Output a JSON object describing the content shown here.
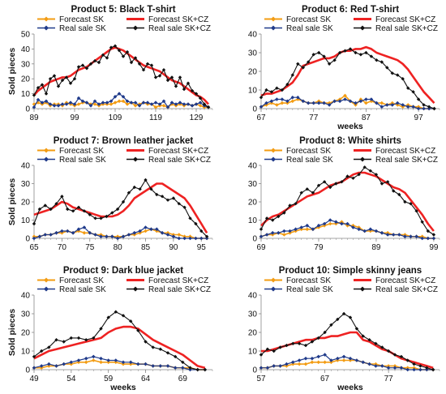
{
  "legend": {
    "forecast_sk": "Forecast SK",
    "real_sk": "Real sale SK",
    "forecast_skcz": "Forecast SK+CZ",
    "real_skcz": "Real sale SK+CZ"
  },
  "colors": {
    "forecast_sk": "#f39c12",
    "real_sk": "#1f3a8a",
    "forecast_skcz": "#ee2222",
    "real_skcz": "#111111"
  },
  "chart_data": [
    {
      "type": "line",
      "title": "Product 5: Black T-shirt",
      "xlabel": "",
      "ylabel": "Sold pieces",
      "xlim": [
        89,
        133
      ],
      "ylim": [
        0,
        50
      ],
      "xticks": [
        89,
        99,
        109,
        119,
        129
      ],
      "yticks": [
        0,
        10,
        20,
        30,
        40,
        50
      ],
      "x": [
        89,
        90,
        91,
        92,
        93,
        94,
        95,
        96,
        97,
        98,
        99,
        100,
        101,
        102,
        103,
        104,
        105,
        106,
        107,
        108,
        109,
        110,
        111,
        112,
        113,
        114,
        115,
        116,
        117,
        118,
        119,
        120,
        121,
        122,
        123,
        124,
        125,
        126,
        127,
        128,
        129,
        130,
        131,
        132
      ],
      "series": [
        {
          "name": "Forecast SK",
          "values": [
            3,
            4,
            3,
            4,
            2,
            3,
            3,
            2,
            4,
            3,
            2,
            3,
            4,
            4,
            3,
            3,
            2,
            3,
            3,
            3,
            4,
            5,
            5,
            3,
            4,
            2,
            3,
            4,
            3,
            3,
            1,
            2,
            2,
            1,
            3,
            2,
            3,
            2,
            3,
            2,
            3,
            2,
            1,
            1
          ]
        },
        {
          "name": "Real sale SK",
          "values": [
            1,
            6,
            4,
            5,
            3,
            2,
            2,
            3,
            3,
            4,
            3,
            7,
            5,
            4,
            2,
            5,
            3,
            4,
            4,
            5,
            8,
            10,
            8,
            5,
            4,
            4,
            2,
            4,
            4,
            3,
            4,
            3,
            5,
            1,
            4,
            3,
            4,
            3,
            3,
            2,
            3,
            4,
            2,
            1
          ]
        },
        {
          "name": "Forecast SK+CZ",
          "values": [
            9,
            12,
            14,
            16,
            18,
            19,
            20,
            21,
            21,
            22,
            24,
            26,
            27,
            28,
            30,
            32,
            34,
            36,
            38,
            40,
            41,
            40,
            39,
            37,
            35,
            33,
            31,
            29,
            28,
            27,
            26,
            25,
            23,
            21,
            19,
            18,
            17,
            15,
            13,
            11,
            9,
            8,
            6,
            3
          ]
        },
        {
          "name": "Real sale SK+CZ",
          "values": [
            9,
            14,
            16,
            10,
            20,
            22,
            15,
            19,
            21,
            17,
            20,
            28,
            29,
            27,
            30,
            32,
            31,
            36,
            34,
            41,
            42,
            39,
            35,
            38,
            31,
            34,
            30,
            26,
            30,
            29,
            21,
            22,
            26,
            19,
            21,
            15,
            21,
            13,
            17,
            12,
            10,
            7,
            3,
            1
          ]
        }
      ]
    },
    {
      "type": "line",
      "title": "Product 6: Red T-shirt",
      "xlabel": "weeks",
      "ylabel": "",
      "xlim": [
        67,
        101
      ],
      "ylim": [
        0,
        40
      ],
      "xticks": [
        67,
        77,
        87,
        97
      ],
      "yticks": [
        0,
        10,
        20,
        30,
        40
      ],
      "x": [
        67,
        68,
        69,
        70,
        71,
        72,
        73,
        74,
        75,
        76,
        77,
        78,
        79,
        80,
        81,
        82,
        83,
        84,
        85,
        86,
        87,
        88,
        89,
        90,
        91,
        92,
        93,
        94,
        95,
        96,
        97,
        98,
        99,
        100
      ],
      "series": [
        {
          "name": "Forecast SK",
          "values": [
            1,
            2,
            3,
            2,
            3,
            3,
            4,
            5,
            4,
            3,
            3,
            4,
            3,
            3,
            4,
            5,
            7,
            4,
            2,
            5,
            3,
            4,
            3,
            3,
            2,
            3,
            2,
            1,
            2,
            1,
            1,
            0,
            0,
            0
          ]
        },
        {
          "name": "Real sale SK",
          "values": [
            1,
            3,
            4,
            5,
            5,
            4,
            6,
            6,
            4,
            3,
            3,
            3,
            3,
            2,
            4,
            4,
            5,
            4,
            3,
            4,
            5,
            5,
            3,
            1,
            2,
            2,
            3,
            2,
            1,
            1,
            0,
            0,
            0,
            0
          ]
        },
        {
          "name": "Forecast SK+CZ",
          "values": [
            7,
            8,
            8,
            9,
            10,
            12,
            14,
            18,
            23,
            24,
            25,
            26,
            27,
            27,
            28,
            30,
            31,
            31,
            32,
            32,
            33,
            32,
            30,
            29,
            28,
            27,
            26,
            24,
            21,
            17,
            13,
            9,
            6,
            3
          ]
        },
        {
          "name": "Real sale SK+CZ",
          "values": [
            6,
            10,
            9,
            11,
            10,
            13,
            18,
            24,
            22,
            25,
            29,
            30,
            28,
            24,
            26,
            30,
            31,
            32,
            30,
            29,
            30,
            28,
            26,
            25,
            22,
            19,
            18,
            16,
            11,
            9,
            5,
            2,
            1,
            0
          ]
        }
      ]
    },
    {
      "type": "line",
      "title": "Product 7: Brown leather jacket",
      "xlabel": "",
      "ylabel": "Sold pieces",
      "xlim": [
        65,
        97
      ],
      "ylim": [
        0,
        40
      ],
      "xticks": [
        65,
        70,
        75,
        80,
        85,
        90,
        95
      ],
      "yticks": [
        0,
        10,
        20,
        30,
        40
      ],
      "x": [
        65,
        66,
        67,
        68,
        69,
        70,
        71,
        72,
        73,
        74,
        75,
        76,
        77,
        78,
        79,
        80,
        81,
        82,
        83,
        84,
        85,
        86,
        87,
        88,
        89,
        90,
        91,
        92,
        93,
        94,
        95,
        96
      ],
      "series": [
        {
          "name": "Forecast SK",
          "values": [
            1,
            1,
            2,
            2,
            3,
            3,
            4,
            3,
            4,
            3,
            3,
            2,
            2,
            1,
            1,
            1,
            1,
            2,
            2,
            3,
            4,
            5,
            4,
            3,
            3,
            2,
            2,
            1,
            1,
            0,
            0,
            0
          ]
        },
        {
          "name": "Real sale SK",
          "values": [
            0,
            1,
            2,
            2,
            3,
            4,
            4,
            3,
            5,
            6,
            3,
            2,
            1,
            1,
            1,
            0,
            1,
            2,
            3,
            4,
            6,
            5,
            5,
            3,
            2,
            1,
            0,
            0,
            0,
            0,
            0,
            0
          ]
        },
        {
          "name": "Forecast SK+CZ",
          "values": [
            13,
            14,
            15,
            16,
            18,
            20,
            19,
            17,
            16,
            15,
            14,
            13,
            12,
            12,
            12,
            13,
            15,
            18,
            22,
            24,
            26,
            28,
            30,
            30,
            28,
            26,
            24,
            22,
            18,
            13,
            8,
            3
          ]
        },
        {
          "name": "Real sale SK+CZ",
          "values": [
            8,
            16,
            18,
            16,
            19,
            23,
            16,
            15,
            17,
            15,
            13,
            11,
            11,
            12,
            14,
            16,
            20,
            25,
            28,
            27,
            32,
            27,
            24,
            23,
            21,
            22,
            19,
            17,
            11,
            8,
            4,
            1
          ]
        }
      ]
    },
    {
      "type": "line",
      "title": "Product 8: White shirts",
      "xlabel": "",
      "ylabel": "",
      "xlim": [
        69,
        100
      ],
      "ylim": [
        0,
        40
      ],
      "xticks": [
        69,
        79,
        89,
        99
      ],
      "yticks": [
        0,
        10,
        20,
        30,
        40
      ],
      "x": [
        69,
        70,
        71,
        72,
        73,
        74,
        75,
        76,
        77,
        78,
        79,
        80,
        81,
        82,
        83,
        84,
        85,
        86,
        87,
        88,
        89,
        90,
        91,
        92,
        93,
        94,
        95,
        96,
        97,
        98,
        99
      ],
      "series": [
        {
          "name": "Forecast SK",
          "values": [
            1,
            2,
            2,
            3,
            2,
            3,
            4,
            5,
            5,
            5,
            6,
            7,
            8,
            8,
            9,
            7,
            7,
            6,
            4,
            4,
            4,
            3,
            3,
            2,
            2,
            2,
            1,
            1,
            1,
            0,
            0
          ]
        },
        {
          "name": "Real sale SK",
          "values": [
            1,
            2,
            3,
            3,
            4,
            4,
            5,
            6,
            7,
            5,
            7,
            8,
            10,
            9,
            8,
            8,
            6,
            5,
            4,
            5,
            4,
            3,
            2,
            2,
            2,
            1,
            1,
            1,
            0,
            0,
            0
          ]
        },
        {
          "name": "Forecast SK+CZ",
          "values": [
            7,
            10,
            12,
            13,
            15,
            17,
            19,
            21,
            23,
            24,
            25,
            27,
            29,
            30,
            31,
            33,
            35,
            36,
            36,
            35,
            34,
            32,
            30,
            28,
            27,
            25,
            21,
            17,
            13,
            8,
            4
          ]
        },
        {
          "name": "Real sale SK+CZ",
          "values": [
            5,
            11,
            10,
            12,
            14,
            18,
            19,
            25,
            27,
            25,
            29,
            31,
            28,
            30,
            31,
            34,
            33,
            35,
            39,
            37,
            35,
            30,
            31,
            26,
            24,
            20,
            19,
            15,
            9,
            4,
            2
          ]
        }
      ]
    },
    {
      "type": "line",
      "title": "Product 9: Dark blue jacket",
      "xlabel": "weeks",
      "ylabel": "Sold pieces",
      "xlim": [
        49,
        73
      ],
      "ylim": [
        0,
        40
      ],
      "xticks": [
        49,
        54,
        59,
        64,
        69
      ],
      "yticks": [
        0,
        10,
        20,
        30,
        40
      ],
      "x": [
        49,
        50,
        51,
        52,
        53,
        54,
        55,
        56,
        57,
        58,
        59,
        60,
        61,
        62,
        63,
        64,
        65,
        66,
        67,
        68,
        69,
        70,
        71,
        72
      ],
      "series": [
        {
          "name": "Forecast SK",
          "values": [
            1,
            1,
            2,
            2,
            3,
            3,
            4,
            4,
            5,
            4,
            4,
            4,
            3,
            3,
            3,
            3,
            2,
            2,
            2,
            1,
            1,
            1,
            0,
            0
          ]
        },
        {
          "name": "Real sale SK",
          "values": [
            1,
            2,
            3,
            2,
            3,
            4,
            5,
            6,
            7,
            6,
            5,
            5,
            4,
            4,
            3,
            3,
            2,
            2,
            2,
            1,
            1,
            0,
            0,
            0
          ]
        },
        {
          "name": "Forecast SK+CZ",
          "values": [
            6,
            8,
            10,
            11,
            12,
            13,
            14,
            15,
            16,
            17,
            20,
            22,
            23,
            23,
            22,
            19,
            16,
            14,
            12,
            10,
            8,
            5,
            2,
            1
          ]
        },
        {
          "name": "Real sale SK+CZ",
          "values": [
            7,
            10,
            12,
            16,
            15,
            17,
            17,
            16,
            17,
            22,
            28,
            31,
            29,
            26,
            21,
            15,
            12,
            11,
            9,
            7,
            4,
            1,
            0,
            0
          ]
        }
      ]
    },
    {
      "type": "line",
      "title": "Product 10: Simple skinny jeans",
      "xlabel": "weeks",
      "ylabel": "",
      "xlim": [
        57,
        85
      ],
      "ylim": [
        0,
        40
      ],
      "xticks": [
        57,
        67,
        77
      ],
      "yticks": [
        0,
        10,
        20,
        30,
        40
      ],
      "x": [
        57,
        58,
        59,
        60,
        61,
        62,
        63,
        64,
        65,
        66,
        67,
        68,
        69,
        70,
        71,
        72,
        73,
        74,
        75,
        76,
        77,
        78,
        79,
        80,
        81,
        82,
        83,
        84
      ],
      "series": [
        {
          "name": "Forecast SK",
          "values": [
            1,
            1,
            2,
            2,
            2,
            3,
            3,
            3,
            4,
            4,
            4,
            4,
            5,
            5,
            5,
            5,
            4,
            3,
            3,
            2,
            2,
            2,
            1,
            1,
            1,
            0,
            0,
            0
          ]
        },
        {
          "name": "Real sale SK",
          "values": [
            1,
            1,
            2,
            2,
            3,
            4,
            5,
            6,
            6,
            7,
            8,
            5,
            6,
            7,
            6,
            5,
            4,
            3,
            2,
            2,
            1,
            1,
            1,
            0,
            0,
            0,
            0,
            0
          ]
        },
        {
          "name": "Forecast SK+CZ",
          "values": [
            10,
            10,
            11,
            12,
            13,
            14,
            15,
            16,
            16,
            17,
            17,
            18,
            18,
            19,
            20,
            20,
            16,
            15,
            13,
            11,
            10,
            8,
            6,
            5,
            4,
            3,
            2,
            1
          ]
        },
        {
          "name": "Real sale SK+CZ",
          "values": [
            8,
            11,
            10,
            12,
            13,
            14,
            14,
            13,
            15,
            17,
            20,
            24,
            27,
            30,
            28,
            22,
            18,
            16,
            14,
            12,
            10,
            8,
            7,
            5,
            3,
            2,
            1,
            0
          ]
        }
      ]
    }
  ]
}
